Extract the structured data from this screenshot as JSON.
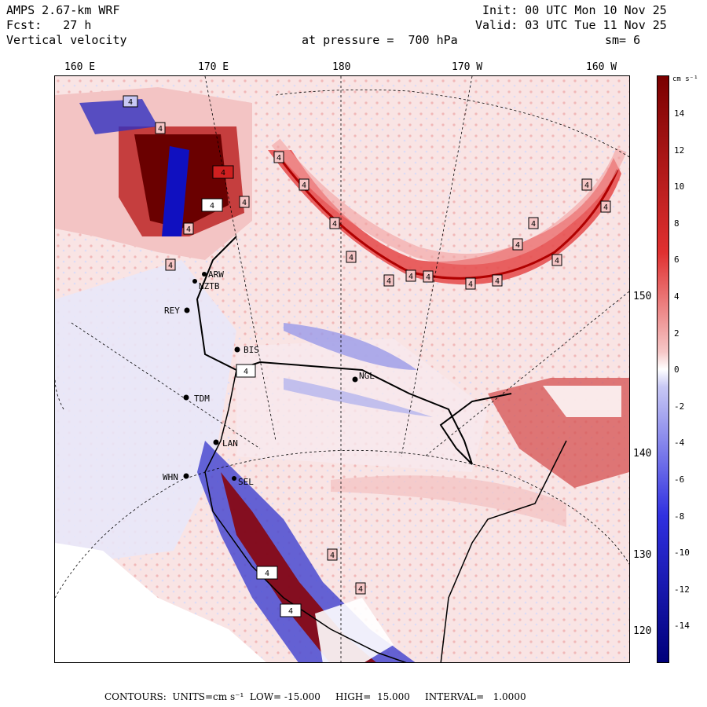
{
  "header": {
    "model": "AMPS 2.67-km WRF",
    "forecast": "Fcst:   27 h",
    "variable": "Vertical velocity",
    "init": "Init: 00 UTC Mon 10 Nov 25",
    "valid": "Valid: 03 UTC Tue 11 Nov 25",
    "pressure": "at pressure =  700 hPa",
    "smoothing": "sm= 6"
  },
  "longitude_labels": [
    "160 E",
    "170 E",
    "180",
    "170 W",
    "160 W"
  ],
  "latitude_labels": [
    "150 W",
    "140 W",
    "130 W",
    "120 W"
  ],
  "stations": [
    "ARW",
    "NZTB",
    "REY",
    "BIS",
    "NGL",
    "TDM",
    "LAN",
    "WHN",
    "SEL"
  ],
  "contour_box_labels": [
    "4",
    "4",
    "4",
    "4",
    "4",
    "4",
    "4",
    "4",
    "4",
    "4",
    "4",
    "4",
    "4",
    "4",
    "4",
    "4",
    "4",
    "4",
    "4",
    "4",
    "4",
    "4",
    "4",
    "4",
    "4",
    "4"
  ],
  "colorbar": {
    "unit": "cm s⁻¹",
    "ticks": [
      "14",
      "12",
      "10",
      "8",
      "6",
      "4",
      "2",
      "0",
      "-2",
      "-4",
      "-6",
      "-8",
      "-10",
      "-12",
      "-14"
    ],
    "colors": {
      "strong_up": "#7a0000",
      "up": "#e03030",
      "weak_up": "#f6c6c6",
      "neutral": "#ffffff",
      "weak_down": "#c8c8f4",
      "down": "#3030e0",
      "strong_down": "#00007a"
    }
  },
  "footer": {
    "text": "CONTOURS:  UNITS=cm s⁻¹  LOW= -15.000     HIGH=  15.000     INTERVAL=   1.0000"
  }
}
